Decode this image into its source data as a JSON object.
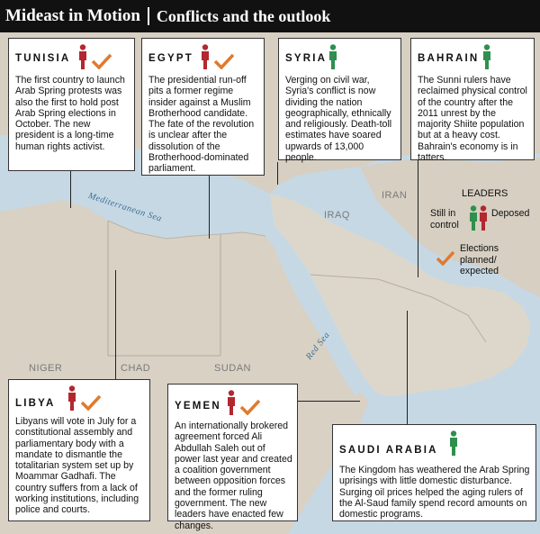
{
  "header": {
    "title": "Mideast in Motion",
    "subtitle": "Conflicts and the outlook"
  },
  "map_labels": {
    "mediterranean": "Mediterranean Sea",
    "red_sea": "Red Sea",
    "iran": "IRAN",
    "iraq": "IRAQ",
    "niger": "NIGER",
    "chad": "CHAD",
    "sudan": "SUDAN"
  },
  "legend": {
    "title": "LEADERS",
    "still_in_control": "Still in control",
    "deposed": "Deposed",
    "elections": "Elections planned/ expected"
  },
  "colors": {
    "still_in_control": "#2f8f4e",
    "deposed": "#b3272e",
    "elections": "#e07a2e",
    "water": "#c3d6e3",
    "land": "#d8d1c4"
  },
  "countries": [
    {
      "name": "TUNISIA",
      "status": "deposed",
      "elections": true,
      "text": "The first country to launch Arab Spring protests was also the first to hold post Arab Spring elections in October. The new president is a long-time human rights activist."
    },
    {
      "name": "EGYPT",
      "status": "deposed",
      "elections": true,
      "text": "The presidential run-off pits a former regime insider against a Muslim Brotherhood candidate. The fate of the revolution is unclear after the dissolution of the Brotherhood-dominated parliament."
    },
    {
      "name": "SYRIA",
      "status": "still_in_control",
      "elections": false,
      "text": "Verging on civil war, Syria's conflict is now dividing the nation geographically, ethnically and religiously. Death-toll estimates have soared upwards of 13,000 people."
    },
    {
      "name": "BAHRAIN",
      "status": "still_in_control",
      "elections": false,
      "text": "The Sunni rulers have reclaimed physical control of the country after the 2011 unrest by the majority Shiite population  but at a heavy cost. Bahrain's economy is in tatters."
    },
    {
      "name": "LIBYA",
      "status": "deposed",
      "elections": true,
      "text": "Libyans will vote in July for a constitutional assembly and parliamentary body with a mandate to dismantle the totalitarian system set up by Moammar Gadhafi. The country suffers from a lack of working institutions, including police and courts."
    },
    {
      "name": "YEMEN",
      "status": "deposed",
      "elections": true,
      "text": "An internationally brokered agreement forced Ali Abdullah Saleh out of power last year and created a coalition government between opposition forces and the former ruling government. The new leaders have enacted few changes."
    },
    {
      "name": "SAUDI ARABIA",
      "status": "still_in_control",
      "elections": false,
      "text": "The Kingdom has weathered the Arab Spring uprisings with little domestic disturbance. Surging oil prices helped the aging rulers of the Al-Saud family spend record amounts on domestic programs."
    }
  ]
}
